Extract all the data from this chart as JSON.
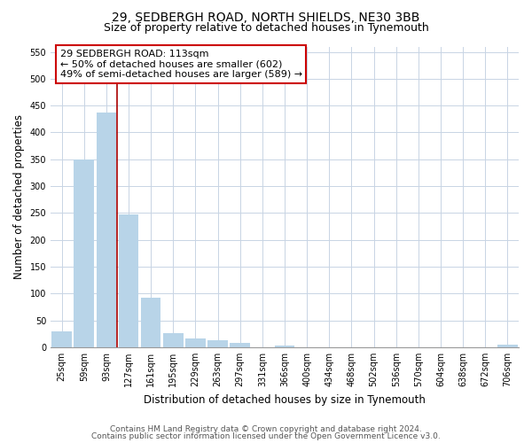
{
  "title": "29, SEDBERGH ROAD, NORTH SHIELDS, NE30 3BB",
  "subtitle": "Size of property relative to detached houses in Tynemouth",
  "xlabel": "Distribution of detached houses by size in Tynemouth",
  "ylabel": "Number of detached properties",
  "bar_labels": [
    "25sqm",
    "59sqm",
    "93sqm",
    "127sqm",
    "161sqm",
    "195sqm",
    "229sqm",
    "263sqm",
    "297sqm",
    "331sqm",
    "366sqm",
    "400sqm",
    "434sqm",
    "468sqm",
    "502sqm",
    "536sqm",
    "570sqm",
    "604sqm",
    "638sqm",
    "672sqm",
    "706sqm"
  ],
  "bar_values": [
    30,
    350,
    437,
    247,
    93,
    26,
    16,
    13,
    8,
    0,
    3,
    0,
    0,
    0,
    0,
    0,
    0,
    0,
    0,
    0,
    5
  ],
  "bar_color": "#b8d4e8",
  "vline_x": 2.5,
  "vline_color": "#aa0000",
  "annotation_title": "29 SEDBERGH ROAD: 113sqm",
  "annotation_line1": "← 50% of detached houses are smaller (602)",
  "annotation_line2": "49% of semi-detached houses are larger (589) →",
  "annotation_box_color": "#ffffff",
  "annotation_border_color": "#cc0000",
  "ylim": [
    0,
    560
  ],
  "yticks": [
    0,
    50,
    100,
    150,
    200,
    250,
    300,
    350,
    400,
    450,
    500,
    550
  ],
  "footnote1": "Contains HM Land Registry data © Crown copyright and database right 2024.",
  "footnote2": "Contains public sector information licensed under the Open Government Licence v3.0.",
  "bg_color": "#ffffff",
  "grid_color": "#c8d4e4",
  "title_fontsize": 10,
  "subtitle_fontsize": 9,
  "axis_label_fontsize": 8.5,
  "tick_fontsize": 7,
  "annotation_fontsize": 8,
  "footnote_fontsize": 6.5
}
